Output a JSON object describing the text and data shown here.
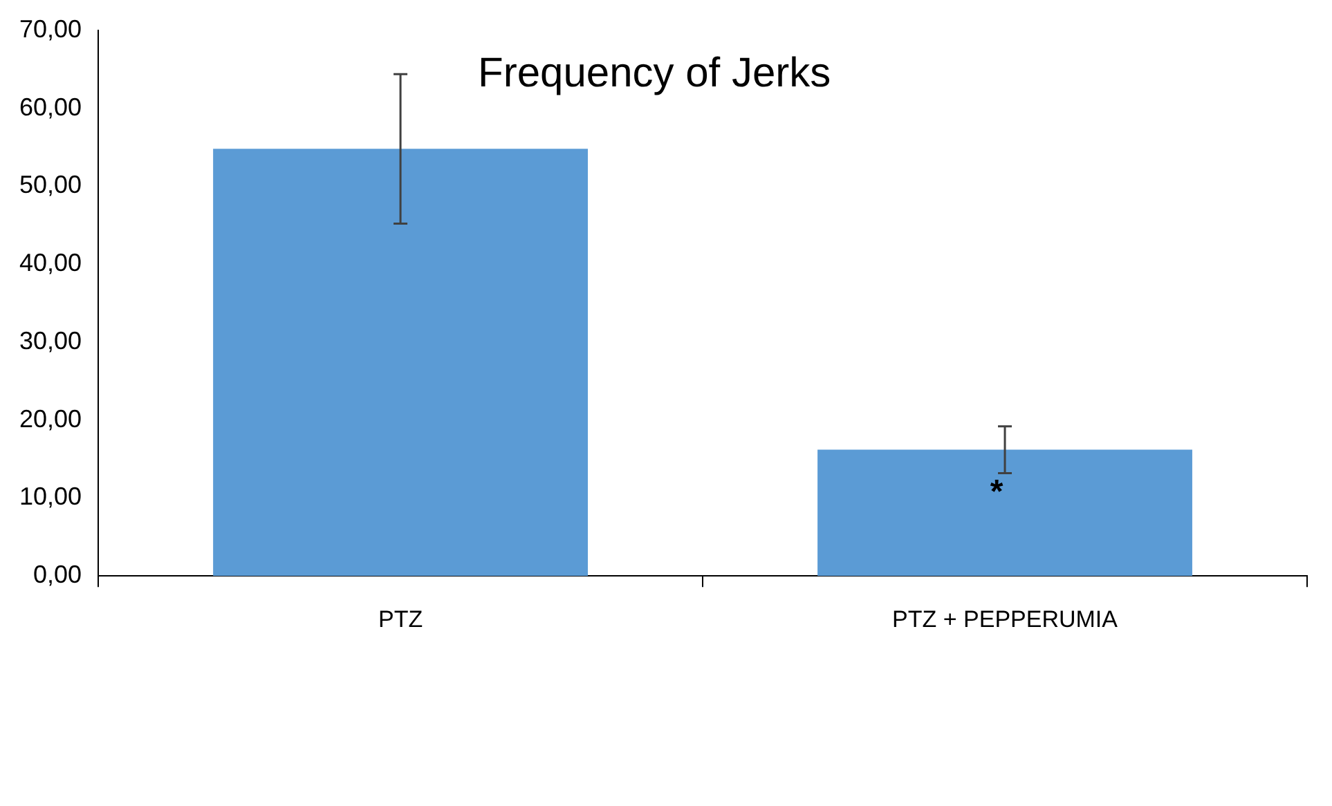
{
  "chart_data": {
    "type": "bar",
    "title": "Frequency of Jerks",
    "categories": [
      "PTZ",
      "PTZ + PEPPERUMIA"
    ],
    "values": [
      54.8,
      16.2
    ],
    "errors": [
      9.6,
      3.0
    ],
    "color": "#5b9bd5",
    "ylim": [
      0,
      70
    ],
    "yticks": [
      {
        "value": 0,
        "label": "0,00"
      },
      {
        "value": 10,
        "label": "10,00"
      },
      {
        "value": 20,
        "label": "20,00"
      },
      {
        "value": 30,
        "label": "30,00"
      },
      {
        "value": 40,
        "label": "40,00"
      },
      {
        "value": 50,
        "label": "50,00"
      },
      {
        "value": 60,
        "label": "60,00"
      },
      {
        "value": 70,
        "label": "70,00"
      }
    ],
    "grid": false,
    "legend": false,
    "annotations": [
      "*"
    ]
  }
}
